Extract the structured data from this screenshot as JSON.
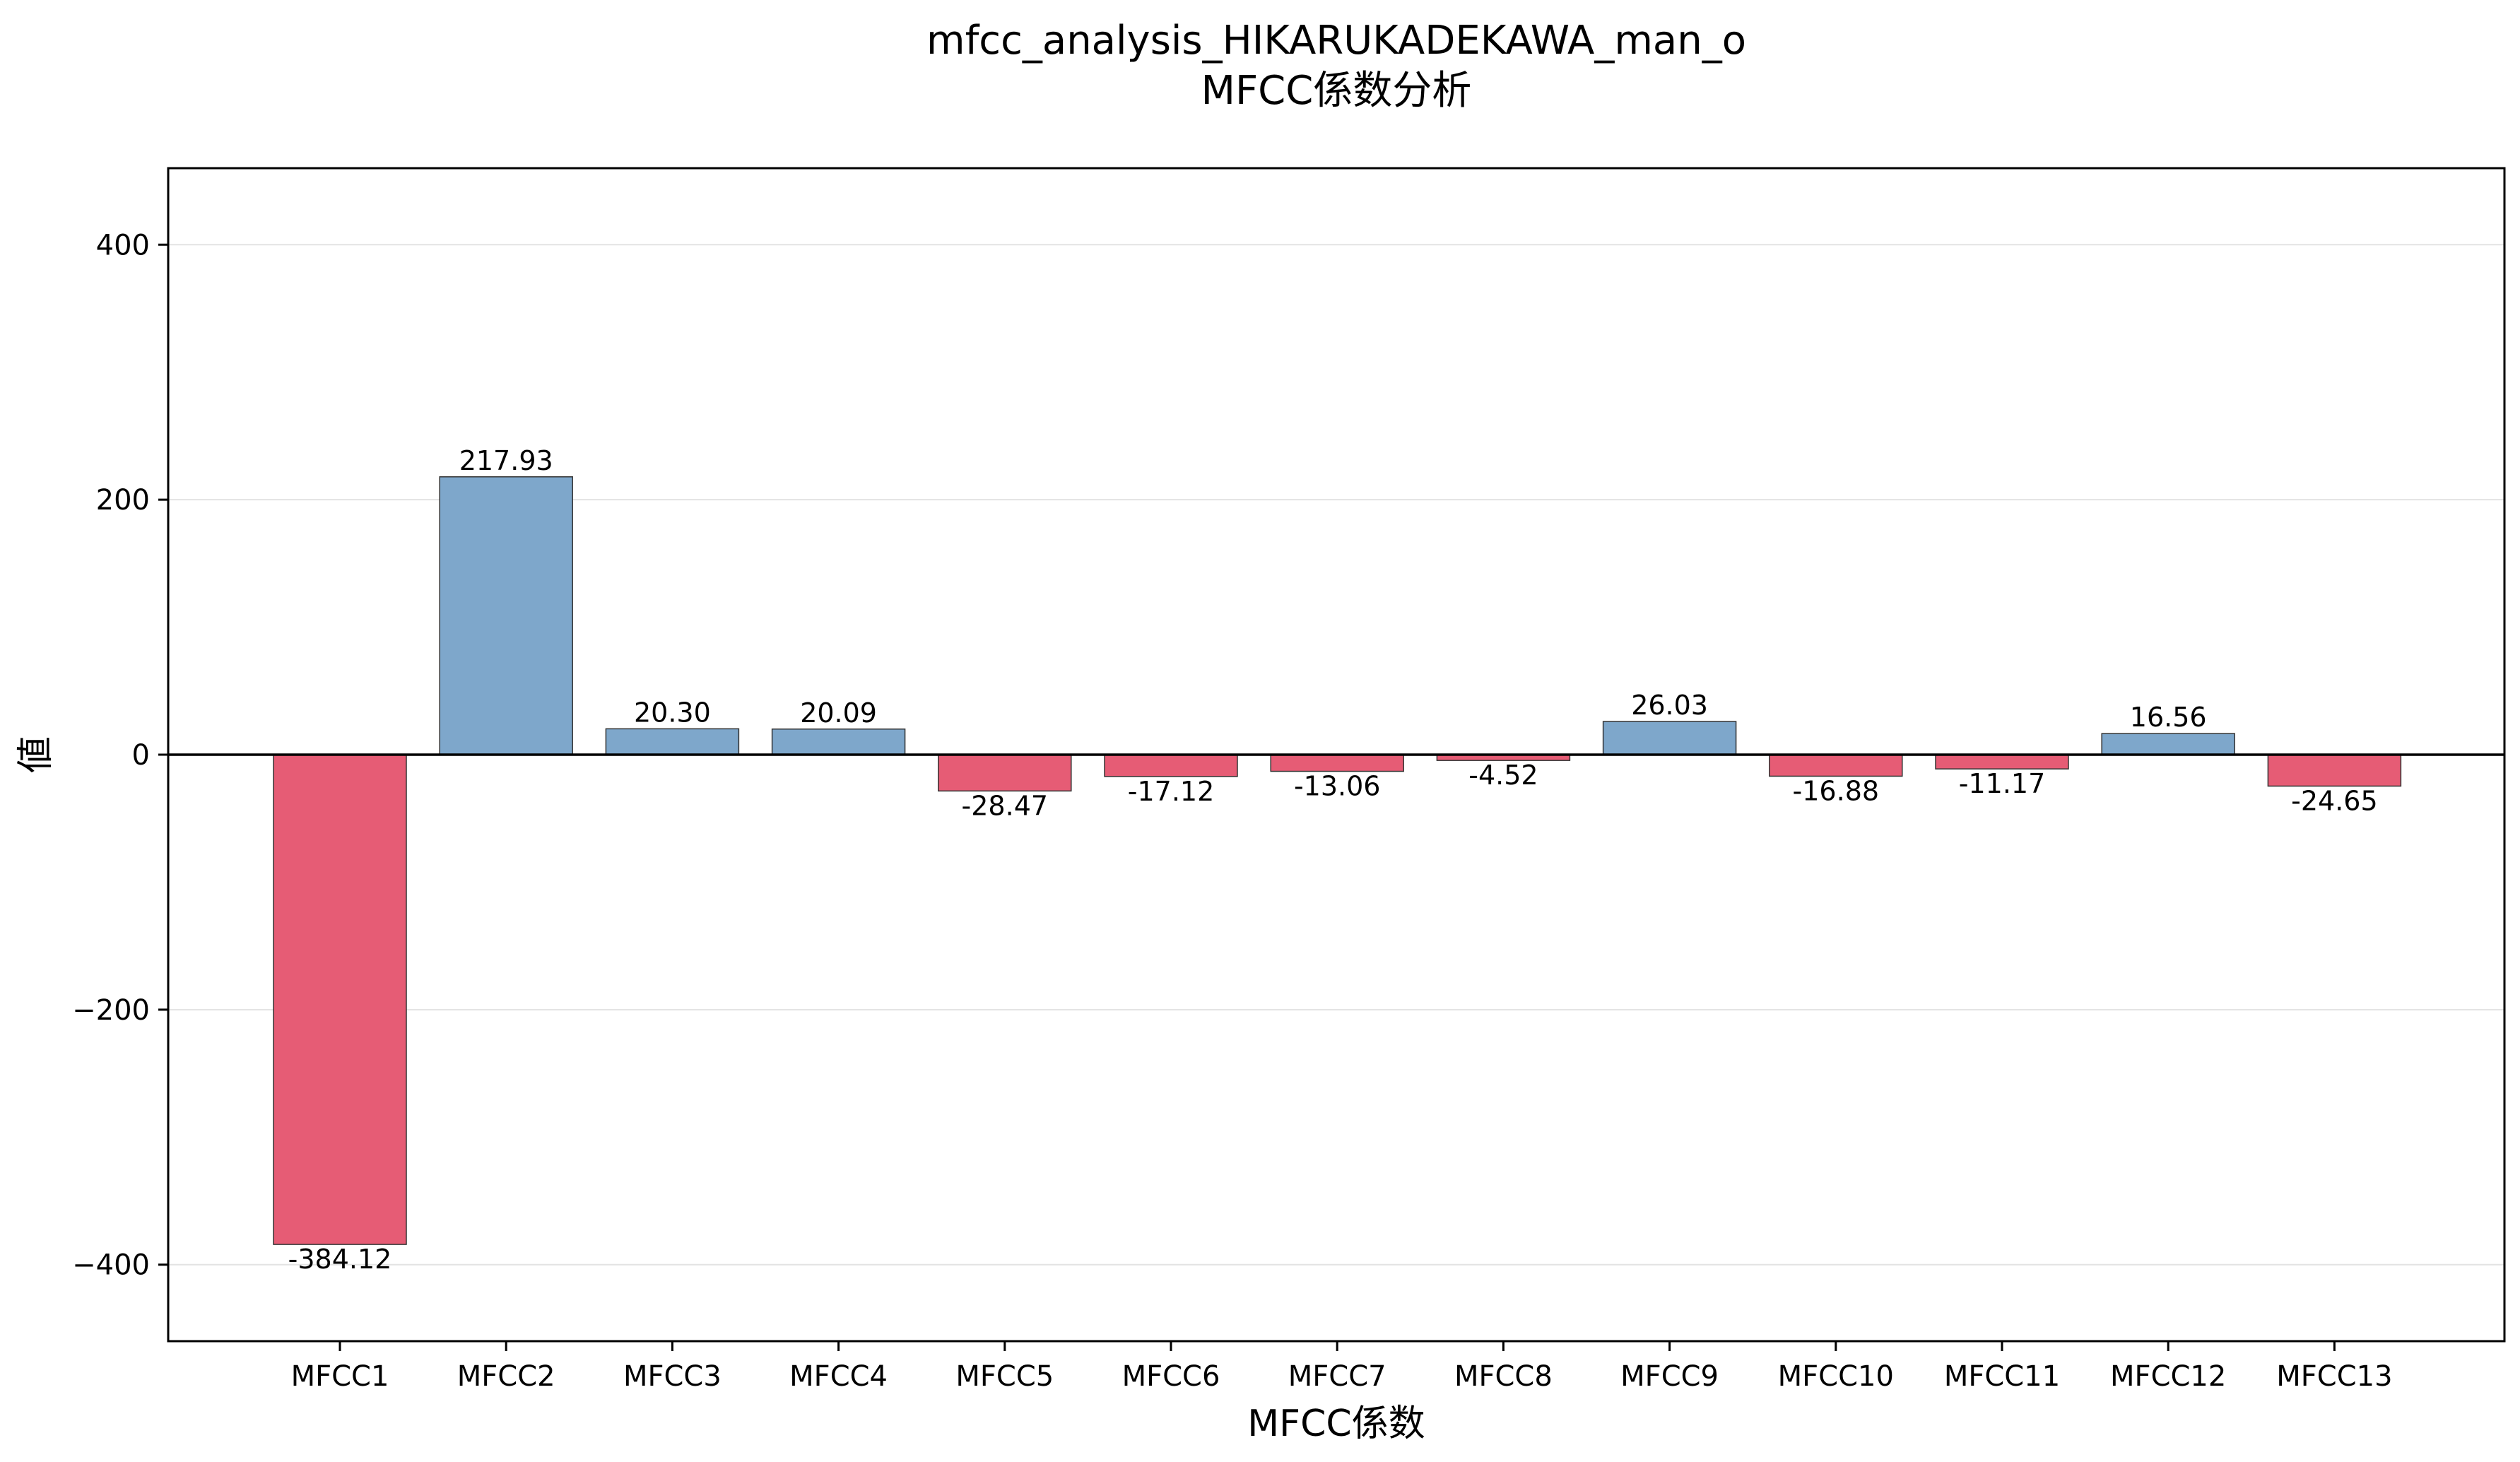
{
  "chart_data": {
    "type": "bar",
    "title": "mfcc_analysis_HIKARUKADEKAWA_man_o",
    "subtitle": "MFCC係数分析",
    "xlabel": "MFCC係数",
    "ylabel": "値",
    "categories": [
      "MFCC1",
      "MFCC2",
      "MFCC3",
      "MFCC4",
      "MFCC5",
      "MFCC6",
      "MFCC7",
      "MFCC8",
      "MFCC9",
      "MFCC10",
      "MFCC11",
      "MFCC12",
      "MFCC13"
    ],
    "values": [
      -384.12,
      217.93,
      20.3,
      20.09,
      -28.47,
      -17.12,
      -13.06,
      -4.52,
      26.03,
      -16.88,
      -11.17,
      16.56,
      -24.65
    ],
    "data_labels": [
      "-384.12",
      "217.93",
      "20.30",
      "20.09",
      "-28.47",
      "-17.12",
      "-13.06",
      "-4.52",
      "26.03",
      "-16.88",
      "-11.17",
      "16.56",
      "-24.65"
    ],
    "ylim": [
      -460,
      460
    ],
    "yticks": [
      -400,
      -200,
      0,
      200,
      400
    ],
    "ytick_labels": [
      "−400",
      "−200",
      "0",
      "200",
      "400"
    ],
    "grid": "horizontal",
    "colors": {
      "positive": "#7ea7cb",
      "negative": "#e65c75",
      "bar_edge": "#333333",
      "grid": "#e3e3e3",
      "zero_line": "#000000",
      "frame": "#000000"
    }
  }
}
